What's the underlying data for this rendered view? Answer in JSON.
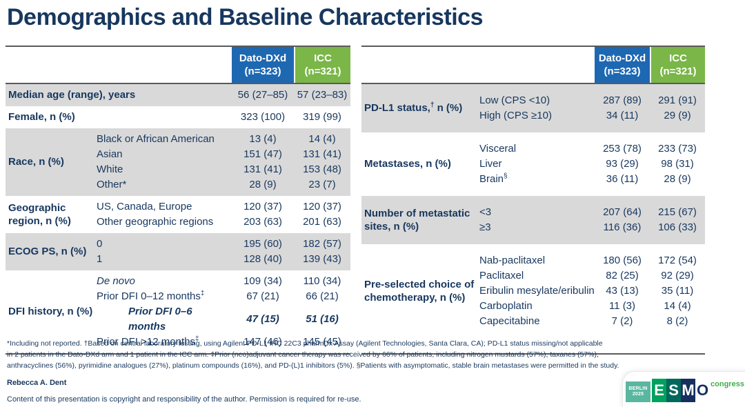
{
  "title": "Demographics and Baseline Characteristics",
  "colors": {
    "header_blue": "#1e68b2",
    "header_green": "#7ab648",
    "text_navy": "#17375e",
    "row_shade": "#d9d9d9"
  },
  "tables": [
    {
      "id": "left",
      "columns": [
        {
          "line1": "Dato-DXd",
          "line2": "(n=323)"
        },
        {
          "line1": "ICC",
          "line2": "(n=321)"
        }
      ],
      "groups": [
        {
          "label": "Median age (range), years",
          "label_span": true,
          "shaded": true,
          "rows": [
            {
              "v1": "56 (27–85)",
              "v2": "57 (23–83)"
            }
          ]
        },
        {
          "label": "Female, n (%)",
          "label_span": true,
          "shaded": false,
          "rows": [
            {
              "v1": "323 (100)",
              "v2": "319 (99)"
            }
          ]
        },
        {
          "label": "Race, n (%)",
          "shaded": true,
          "rows": [
            {
              "sub": "Black or African American",
              "v1": "13 (4)",
              "v2": "14 (4)"
            },
            {
              "sub": "Asian",
              "v1": "151 (47)",
              "v2": "131 (41)"
            },
            {
              "sub": "White",
              "v1": "131 (41)",
              "v2": "153 (48)"
            },
            {
              "sub": "Other*",
              "v1": "28 (9)",
              "v2": "23 (7)"
            }
          ]
        },
        {
          "label": "Geographic region, n (%)",
          "shaded": false,
          "rows": [
            {
              "sub": "US, Canada, Europe",
              "v1": "120 (37)",
              "v2": "120 (37)"
            },
            {
              "sub": "Other geographic regions",
              "v1": "203 (63)",
              "v2": "201 (63)"
            }
          ]
        },
        {
          "label": "ECOG PS, n (%)",
          "shaded": true,
          "rows": [
            {
              "sub": "0",
              "v1": "195 (60)",
              "v2": "182 (57)"
            },
            {
              "sub": "1",
              "v1": "128 (40)",
              "v2": "139 (43)"
            }
          ]
        },
        {
          "label": "DFI history, n (%)",
          "shaded": false,
          "rows": [
            {
              "sub": "De novo",
              "style": "italic",
              "v1": "109 (34)",
              "v2": "110 (34)"
            },
            {
              "sub": "Prior DFI 0–12 months",
              "sub_sup": "‡",
              "v1": "67 (21)",
              "v2": "66 (21)"
            },
            {
              "sub": "Prior DFI 0–6 months",
              "style": "bold-italic",
              "indent": true,
              "v1": "47 (15)",
              "v2": "51 (16)"
            },
            {
              "sub": "Prior DFI >12 months",
              "sub_sup": "‡",
              "v1": "147 (46)",
              "v2": "145 (45)"
            }
          ]
        }
      ]
    },
    {
      "id": "right",
      "columns": [
        {
          "line1": "Dato-DXd",
          "line2": "(n=323)"
        },
        {
          "line1": "ICC",
          "line2": "(n=321)"
        }
      ],
      "groups": [
        {
          "label": "PD-L1 status,",
          "label_sup": "†",
          "label_after": " n (%)",
          "shaded": true,
          "rows": [
            {
              "sub": "Low (CPS <10)",
              "v1": "287 (89)",
              "v2": "291 (91)"
            },
            {
              "sub": "High (CPS ≥10)",
              "v1": "34 (11)",
              "v2": "29 (9)"
            }
          ]
        },
        {
          "label": "Metastases, n (%)",
          "shaded": false,
          "rows": [
            {
              "sub": "Visceral",
              "v1": "253 (78)",
              "v2": "233 (73)"
            },
            {
              "sub": "Liver",
              "v1": "93 (29)",
              "v2": "98 (31)"
            },
            {
              "sub": "Brain",
              "sub_sup": "§",
              "v1": "36 (11)",
              "v2": "28 (9)"
            }
          ]
        },
        {
          "label": "Number of metastatic sites, n (%)",
          "shaded": true,
          "rows": [
            {
              "sub": "<3",
              "v1": "207 (64)",
              "v2": "215 (67)"
            },
            {
              "sub": "≥3",
              "v1": "116 (36)",
              "v2": "106 (33)"
            }
          ]
        },
        {
          "label": "Pre-selected choice of chemotherapy, n (%)",
          "shaded": false,
          "rows": [
            {
              "sub": "Nab-paclitaxel",
              "v1": "180 (56)",
              "v2": "172 (54)"
            },
            {
              "sub": "Paclitaxel",
              "v1": "82 (25)",
              "v2": "92 (29)"
            },
            {
              "sub": "Eribulin mesylate/eribulin",
              "v1": "43 (13)",
              "v2": "35 (11)"
            },
            {
              "sub": "Carboplatin",
              "v1": "11 (3)",
              "v2": "14 (4)"
            },
            {
              "sub": "Capecitabine",
              "v1": "7 (2)",
              "v2": "8 (2)"
            }
          ]
        }
      ]
    }
  ],
  "footnotes": {
    "lines": [
      "*Including not reported. †Based on central laboratory testing, using Agilent PD-L1 IHC 22C3 pharmDx Assay (Agilent Technologies, Santa Clara, CA); PD-L1 status missing/not applicable",
      "in 2 patients in the Dato-DXd arm and 1 patient in the ICC arm. ‡Prior (neo)adjuvant cancer therapy was received by 66% of patients, including nitrogen mustards (57%), taxanes (57%),",
      "anthracyclines (56%), pyrimidine analogues (27%), platinum compounds (16%), and PD-(L)1 inhibitors (5%). §Patients with asymptomatic, stable brain metastases were permitted in the study."
    ]
  },
  "footer": {
    "presenter": "Rebecca A. Dent",
    "copyright": "Content of this presentation is copyright and responsibility of the author. Permission is required for re-use."
  },
  "logo": {
    "badge_line1": "BERLIN",
    "badge_line2": "2025",
    "letters": [
      "E",
      "S",
      "M",
      "O"
    ],
    "congress": "congress"
  }
}
